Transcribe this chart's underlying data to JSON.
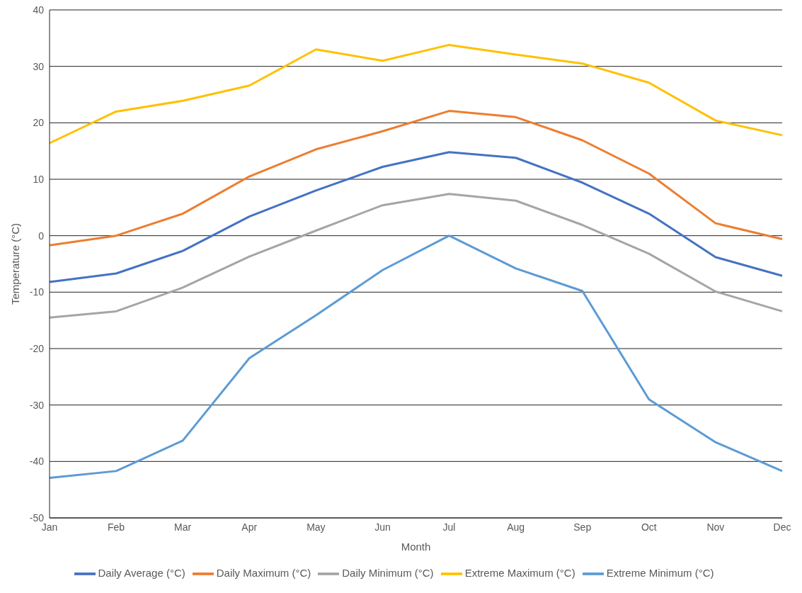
{
  "chart_data": {
    "type": "line",
    "xlabel": "Month",
    "ylabel": "Temperature (°C)",
    "categories": [
      "Jan",
      "Feb",
      "Mar",
      "Apr",
      "May",
      "Jun",
      "Jul",
      "Aug",
      "Sep",
      "Oct",
      "Nov",
      "Dec"
    ],
    "series": [
      {
        "name": "Daily Average (°C)",
        "color": "#4472c4",
        "values": [
          -8.2,
          -6.7,
          -2.7,
          3.4,
          8.0,
          12.2,
          14.8,
          13.8,
          9.4,
          3.9,
          -3.8,
          -7.1
        ]
      },
      {
        "name": "Daily Maximum (°C)",
        "color": "#ed7d31",
        "values": [
          -1.7,
          0,
          3.9,
          10.5,
          15.3,
          18.5,
          22.1,
          21.0,
          16.9,
          11.0,
          2.2,
          -0.6
        ]
      },
      {
        "name": "Daily Minimum (°C)",
        "color": "#a5a5a5",
        "values": [
          -14.5,
          -13.4,
          -9.2,
          -3.7,
          0.9,
          5.4,
          7.4,
          6.2,
          1.9,
          -3.2,
          -9.9,
          -13.4
        ]
      },
      {
        "name": "Extreme Maximum (°C)",
        "color": "#ffc000",
        "values": [
          16.4,
          22.0,
          23.9,
          26.6,
          33.0,
          31.0,
          33.8,
          32.1,
          30.5,
          27.1,
          20.4,
          17.8
        ]
      },
      {
        "name": "Extreme Minimum (°C)",
        "color": "#5b9bd5",
        "values": [
          -42.9,
          -41.7,
          -36.3,
          -21.7,
          -14.1,
          -6.1,
          0,
          -5.8,
          -9.8,
          -29.0,
          -36.6,
          -41.7
        ]
      }
    ],
    "ylim": [
      -50,
      40
    ],
    "yticks": [
      -50,
      -40,
      -30,
      -20,
      -10,
      0,
      10,
      20,
      30,
      40
    ],
    "grid": "y",
    "legend": "bottom",
    "marker": "none",
    "line_style": "solid"
  }
}
